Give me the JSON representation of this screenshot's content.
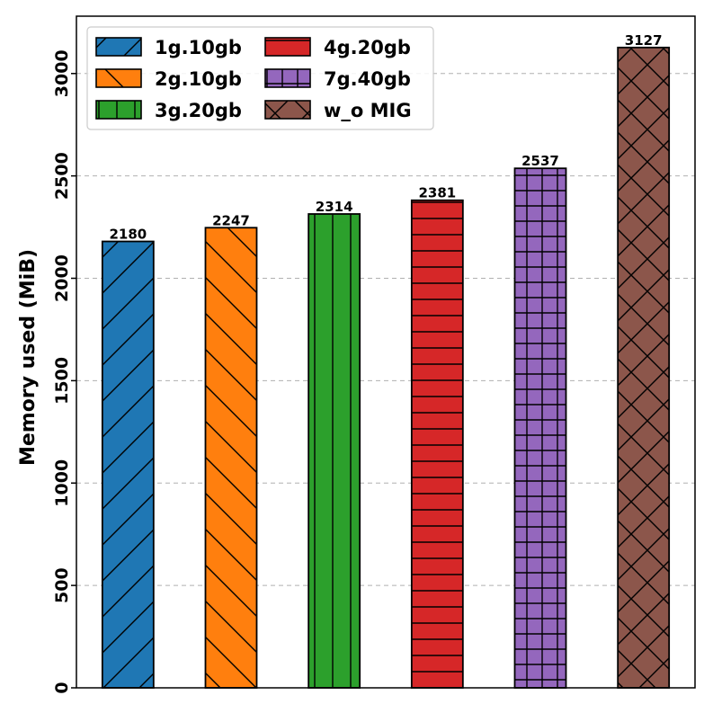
{
  "chart_data": {
    "type": "bar",
    "title": "",
    "xlabel": "",
    "ylabel": "Memory used (MiB)",
    "ylim": [
      0,
      3280
    ],
    "yticks": [
      0,
      500,
      1000,
      1500,
      2000,
      2500,
      3000
    ],
    "grid": "y-dashed",
    "legend_position": "top-left",
    "legend_columns": 2,
    "categories": [
      "1g.10gb",
      "2g.10gb",
      "3g.20gb",
      "4g.20gb",
      "7g.40gb",
      "w_o MIG"
    ],
    "values": [
      2180,
      2247,
      2314,
      2381,
      2537,
      3127
    ],
    "data_labels": [
      "2180",
      "2247",
      "2314",
      "2381",
      "2537",
      "3127"
    ],
    "colors": [
      "#1f77b4",
      "#ff7f0e",
      "#2ca02c",
      "#d62728",
      "#9467bd",
      "#8c564b"
    ],
    "hatches": [
      "forward-diagonal",
      "back-diagonal",
      "vertical",
      "horizontal",
      "grid",
      "cross-diagonal"
    ]
  }
}
